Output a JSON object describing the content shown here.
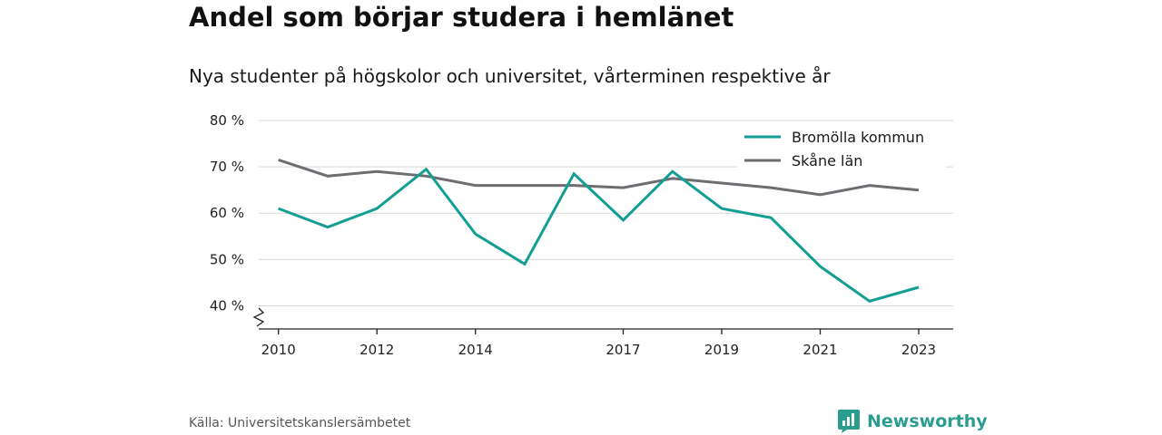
{
  "colors": {
    "bromolla": "#139e94",
    "skane": "#6f6c72",
    "grid": "#d9d9d9",
    "axis": "#222222",
    "brand": "#2a9d8f"
  },
  "source": "Källa: Universitetskanslersämbetet",
  "brand": {
    "name": "Newsworthy",
    "icon": "newsworthy-logo-icon"
  },
  "chart_data": {
    "type": "line",
    "title": "Andel som börjar studera i hemlänet",
    "subtitle": "Nya studenter på högskolor och universitet, vårterminen respektive år",
    "x": [
      2010,
      2011,
      2012,
      2013,
      2014,
      2015,
      2016,
      2017,
      2018,
      2019,
      2020,
      2021,
      2022,
      2023
    ],
    "x_tick_values": [
      2010,
      2012,
      2014,
      2017,
      2019,
      2021,
      2023
    ],
    "x_tick_labels": [
      "2010",
      "2012",
      "2014",
      "2017",
      "2019",
      "2021",
      "2023"
    ],
    "y_tick_values": [
      40,
      50,
      60,
      70,
      80
    ],
    "y_tick_labels": [
      "40 %",
      "50 %",
      "60 %",
      "70 %",
      "80 %"
    ],
    "ylim": [
      35,
      80
    ],
    "xlim": [
      2009.6,
      2023.7
    ],
    "y_axis_break": true,
    "grid": "horizontal",
    "legend_position": "top-right",
    "series": [
      {
        "name": "Bromölla kommun",
        "values": [
          61.0,
          57.0,
          61.0,
          69.5,
          55.5,
          49.0,
          68.5,
          58.5,
          69.0,
          61.0,
          59.0,
          48.5,
          41.0,
          44.0
        ]
      },
      {
        "name": "Skåne län",
        "values": [
          71.5,
          68.0,
          69.0,
          68.0,
          66.0,
          66.0,
          66.0,
          65.5,
          67.5,
          66.5,
          65.5,
          64.0,
          66.0,
          65.0
        ]
      }
    ]
  }
}
